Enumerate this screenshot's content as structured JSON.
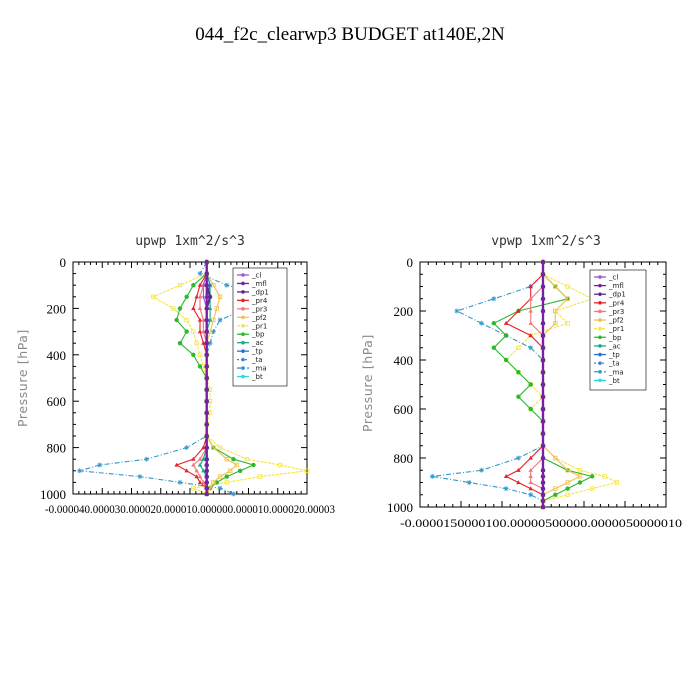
{
  "figure": {
    "title": "044_f2c_clearwp3  BUDGET at140E,2N"
  },
  "colors": {
    "cl": "#9b59d0",
    "mfl": "#7a1fa2",
    "dp1": "#5b2c8f",
    "pr4": "#e8202a",
    "pr3": "#f07a7a",
    "pf2": "#f2c14e",
    "pr1": "#f5e44a",
    "bp": "#2eb82e",
    "ac": "#1aa88c",
    "tp": "#2a6fd6",
    "ta": "#3a88c8",
    "ma": "#3399cc",
    "bt": "#22dddd"
  },
  "chart_data": [
    {
      "type": "line",
      "title": "upwp   1xm^2/s^3",
      "ylabel": "Pressure [hPa]",
      "ylim": [
        1000,
        0
      ],
      "xlim": [
        -4e-05,
        3e-05
      ],
      "yticks": [
        "0",
        "200",
        "400",
        "600",
        "800",
        "1000"
      ],
      "xtick_label": "-0.000040.000030.000020.000010.000000.000010.000020.00003",
      "y": [
        0,
        50,
        100,
        150,
        200,
        250,
        300,
        350,
        400,
        450,
        500,
        550,
        600,
        650,
        700,
        750,
        800,
        850,
        875,
        900,
        925,
        950,
        975,
        1000
      ],
      "series": [
        {
          "name": "_cl",
          "key": "cl",
          "values": [
            0,
            0,
            -1e-06,
            -1e-06,
            0,
            0,
            0,
            0,
            0,
            0,
            0,
            0,
            0,
            0,
            0,
            0,
            0,
            0,
            0,
            0,
            0,
            0,
            0,
            0
          ]
        },
        {
          "name": "_mfl",
          "key": "mfl",
          "values": [
            0,
            0,
            0,
            0,
            0,
            0,
            0,
            0,
            0,
            0,
            0,
            0,
            0,
            0,
            0,
            0,
            0,
            0,
            0,
            0,
            0,
            0,
            0,
            0
          ]
        },
        {
          "name": "_dp1",
          "key": "dp1",
          "values": [
            0,
            0,
            0,
            1e-06,
            0,
            0,
            0,
            0,
            0,
            0,
            0,
            0,
            0,
            0,
            0,
            0,
            0,
            0,
            0,
            0,
            0,
            0,
            0,
            0
          ]
        },
        {
          "name": "_pr4",
          "key": "pr4",
          "values": [
            0,
            0,
            -2e-06,
            -3e-06,
            -4e-06,
            -2e-06,
            -2e-06,
            -1e-06,
            0,
            0,
            0,
            0,
            0,
            0,
            0,
            0,
            -1e-06,
            -4e-06,
            -9e-06,
            -6e-06,
            -3e-06,
            -2e-06,
            0,
            0
          ]
        },
        {
          "name": "_pr3",
          "key": "pr3",
          "values": [
            0,
            0,
            -1e-06,
            -2e-06,
            -2e-06,
            -1e-06,
            -1e-06,
            0,
            0,
            0,
            0,
            0,
            0,
            0,
            0,
            0,
            0,
            -2e-06,
            -4e-06,
            -3e-06,
            -2e-06,
            -1e-06,
            0,
            0
          ]
        },
        {
          "name": "_pf2",
          "key": "pf2",
          "values": [
            0,
            0,
            2e-06,
            4e-06,
            3e-06,
            2e-06,
            1e-06,
            0,
            0,
            0,
            0,
            0,
            0,
            0,
            0,
            0,
            2e-06,
            6e-06,
            9e-06,
            7e-06,
            4e-06,
            2e-06,
            1e-06,
            0
          ]
        },
        {
          "name": "_pr1",
          "key": "pr1",
          "values": [
            0,
            0,
            -8e-06,
            -1.6e-05,
            -1e-05,
            -6e-06,
            -4e-06,
            -3e-06,
            -2e-06,
            -1e-06,
            0,
            1e-06,
            1e-06,
            1e-06,
            0,
            0,
            4e-06,
            1.2e-05,
            2.2e-05,
            3e-05,
            1.6e-05,
            6e-06,
            -4e-06,
            0
          ]
        },
        {
          "name": "_bp",
          "key": "bp",
          "values": [
            0,
            0,
            -4e-06,
            -6e-06,
            -8e-06,
            -9e-06,
            -6e-06,
            -8e-06,
            -4e-06,
            -2e-06,
            0,
            0,
            0,
            0,
            0,
            0,
            2e-06,
            8e-06,
            1.4e-05,
            1e-05,
            6e-06,
            3e-06,
            1e-06,
            0
          ]
        },
        {
          "name": "_ac",
          "key": "ac",
          "values": [
            0,
            0,
            1e-06,
            1e-06,
            1e-06,
            1e-06,
            0,
            0,
            0,
            0,
            0,
            0,
            0,
            0,
            0,
            0,
            0,
            -1e-06,
            -2e-06,
            -1e-06,
            0,
            0,
            0,
            0
          ]
        },
        {
          "name": "_tp",
          "key": "tp",
          "values": [
            0,
            0,
            1e-06,
            0,
            0,
            0,
            0,
            0,
            0,
            0,
            0,
            0,
            0,
            0,
            0,
            0,
            0,
            0,
            0,
            0,
            0,
            0,
            0,
            0
          ]
        },
        {
          "name": "_ta",
          "key": "ta",
          "values": [
            0,
            0,
            0,
            0,
            0,
            0,
            0,
            0,
            0,
            0,
            0,
            0,
            0,
            0,
            0,
            0,
            0,
            0,
            0,
            0,
            0,
            0,
            0,
            0
          ]
        },
        {
          "name": "_ma",
          "key": "ma",
          "values": [
            0,
            -2e-06,
            6e-06,
            2e-05,
            1.2e-05,
            4e-06,
            2e-06,
            1e-06,
            0,
            0,
            0,
            0,
            0,
            0,
            0,
            0,
            -6e-06,
            -1.8e-05,
            -3.2e-05,
            -3.8e-05,
            -2e-05,
            -8e-06,
            4e-06,
            8e-06
          ]
        },
        {
          "name": "_bt",
          "key": "bt",
          "values": [
            0,
            0,
            0,
            0,
            0,
            0,
            0,
            0,
            0,
            0,
            0,
            0,
            0,
            0,
            0,
            0,
            0,
            0,
            0,
            0,
            0,
            0,
            0,
            0
          ]
        }
      ]
    },
    {
      "type": "line",
      "title": "vpwp   1xm^2/s^3",
      "ylabel": "Pressure [hPa]",
      "ylim": [
        1000,
        0
      ],
      "xlim": [
        -1e-05,
        1e-05
      ],
      "yticks": [
        "0",
        "200",
        "400",
        "600",
        "800",
        "1000"
      ],
      "xtick_label": "-0.0000150000100.00000500000.0000050000010",
      "y": [
        0,
        50,
        100,
        150,
        200,
        250,
        300,
        350,
        400,
        450,
        500,
        550,
        600,
        650,
        700,
        750,
        800,
        850,
        875,
        900,
        925,
        950,
        975,
        1000
      ],
      "series": [
        {
          "name": "_cl",
          "key": "cl",
          "values": [
            0,
            0,
            0,
            0,
            0,
            0,
            0,
            0,
            0,
            0,
            0,
            0,
            0,
            0,
            0,
            0,
            0,
            0,
            0,
            0,
            0,
            0,
            0,
            0
          ]
        },
        {
          "name": "_mfl",
          "key": "mfl",
          "values": [
            0,
            0,
            0,
            0,
            0,
            0,
            0,
            0,
            0,
            0,
            0,
            0,
            0,
            0,
            0,
            0,
            0,
            0,
            0,
            0,
            0,
            0,
            0,
            0
          ]
        },
        {
          "name": "_dp1",
          "key": "dp1",
          "values": [
            0,
            0,
            0,
            0,
            0,
            0,
            0,
            0,
            0,
            0,
            0,
            0,
            0,
            0,
            0,
            0,
            0,
            0,
            0,
            0,
            0,
            0,
            0,
            0
          ]
        },
        {
          "name": "_pr4",
          "key": "pr4",
          "values": [
            0,
            0,
            -1e-06,
            -1e-06,
            -2e-06,
            -3e-06,
            -1e-06,
            0,
            0,
            0,
            0,
            0,
            0,
            0,
            0,
            0,
            -1e-06,
            -2e-06,
            -3e-06,
            -2e-06,
            -1e-06,
            0,
            0,
            0
          ]
        },
        {
          "name": "_pr3",
          "key": "pr3",
          "values": [
            0,
            0,
            0,
            -1e-06,
            -1e-06,
            -1e-06,
            0,
            0,
            0,
            0,
            0,
            0,
            0,
            0,
            0,
            0,
            0,
            -1e-06,
            -1e-06,
            -1e-06,
            0,
            0,
            0,
            0
          ]
        },
        {
          "name": "_pf2",
          "key": "pf2",
          "values": [
            0,
            0,
            1e-06,
            2e-06,
            1e-06,
            1e-06,
            0,
            0,
            0,
            0,
            0,
            0,
            0,
            0,
            0,
            0,
            1e-06,
            2e-06,
            3e-06,
            2e-06,
            1e-06,
            0,
            0,
            0
          ]
        },
        {
          "name": "_pr1",
          "key": "pr1",
          "values": [
            0,
            0,
            2e-06,
            4e-06,
            1e-06,
            2e-06,
            -1e-06,
            -2e-06,
            -3e-06,
            -2e-06,
            -1e-06,
            0,
            -1e-06,
            0,
            0,
            0,
            1e-06,
            3e-06,
            5e-06,
            6e-06,
            4e-06,
            2e-06,
            0,
            0
          ]
        },
        {
          "name": "_bp",
          "key": "bp",
          "values": [
            0,
            0,
            1e-06,
            2e-06,
            -2e-06,
            -4e-06,
            -3e-06,
            -4e-06,
            -3e-06,
            -2e-06,
            -1e-06,
            -2e-06,
            -1e-06,
            0,
            0,
            0,
            0,
            2e-06,
            4e-06,
            3e-06,
            2e-06,
            1e-06,
            0,
            0
          ]
        },
        {
          "name": "_ac",
          "key": "ac",
          "values": [
            0,
            0,
            0,
            0,
            0,
            0,
            0,
            0,
            0,
            0,
            0,
            0,
            0,
            0,
            0,
            0,
            0,
            0,
            0,
            0,
            0,
            0,
            0,
            0
          ]
        },
        {
          "name": "_tp",
          "key": "tp",
          "values": [
            0,
            0,
            0,
            0,
            0,
            0,
            0,
            0,
            0,
            0,
            0,
            0,
            0,
            0,
            0,
            0,
            0,
            0,
            0,
            0,
            0,
            0,
            0,
            0
          ]
        },
        {
          "name": "_ta",
          "key": "ta",
          "values": [
            0,
            0,
            0,
            0,
            0,
            0,
            0,
            0,
            0,
            0,
            0,
            0,
            0,
            0,
            0,
            0,
            0,
            0,
            0,
            0,
            0,
            0,
            0,
            0
          ]
        },
        {
          "name": "_ma",
          "key": "ma",
          "values": [
            0,
            0,
            -1e-06,
            -4e-06,
            -7e-06,
            -5e-06,
            -3e-06,
            -1e-06,
            0,
            0,
            0,
            0,
            0,
            0,
            0,
            0,
            -2e-06,
            -5e-06,
            -9e-06,
            -6e-06,
            -3e-06,
            -1e-06,
            0,
            0
          ]
        },
        {
          "name": "_bt",
          "key": "bt",
          "values": [
            0,
            0,
            0,
            0,
            0,
            0,
            0,
            0,
            0,
            0,
            0,
            0,
            0,
            0,
            0,
            0,
            0,
            0,
            0,
            0,
            0,
            0,
            0,
            0
          ]
        }
      ]
    }
  ]
}
